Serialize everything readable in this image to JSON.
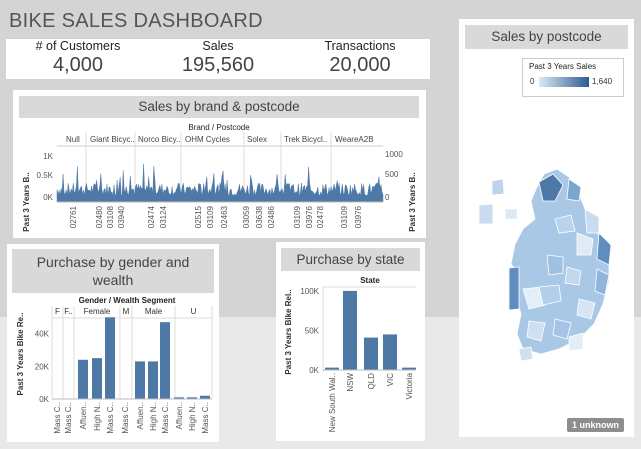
{
  "dashboard": {
    "title": "BIKE SALES DASHBOARD"
  },
  "kpis": [
    {
      "label": "# of Customers",
      "value": "4,000"
    },
    {
      "label": "Sales",
      "value": "195,560"
    },
    {
      "label": "Transactions",
      "value": "20,000"
    }
  ],
  "brand_panel": {
    "title": "Sales by brand & postcode",
    "column_header": "Brand / Postcode",
    "brands": [
      "Null",
      "Giant Bicyc..",
      "Norco Bicy..",
      "OHM Cycles",
      "Solex",
      "Trek Bicycl..",
      "WeareA2B"
    ],
    "left_axis_label": "Past 3 Years B..",
    "right_axis_label": "Past 3 Years B..",
    "left_ticks": [
      "1K",
      "0.5K",
      "0K"
    ],
    "right_ticks": [
      "1000",
      "500",
      "0"
    ],
    "postcodes": [
      "02761",
      "02480",
      "03108",
      "03940",
      "02474",
      "03124",
      "02515",
      "03109",
      "02463",
      "03059",
      "03638",
      "02486",
      "03109",
      "03976",
      "02478",
      "03109",
      "03976"
    ]
  },
  "map_panel": {
    "title": "Sales by postcode",
    "legend_title": "Past 3 Years Sales",
    "legend_min": "0",
    "legend_max": "1,640",
    "unknown_badge": "1 unknown"
  },
  "gender_panel": {
    "title": "Purchase by gender and wealth",
    "column_header": "Gender / Wealth Segment",
    "groups": [
      "F",
      "F..",
      "Female",
      "M",
      "Male",
      "U"
    ],
    "y_label": "Past 3 Years Bike Re..",
    "y_ticks": [
      "40K",
      "20K",
      "0K"
    ],
    "x_labels": [
      "Mass C..",
      "Mass C..",
      "Affuen..",
      "High N..",
      "Mass C..",
      "Mass C..",
      "Affuen..",
      "High N..",
      "Mass C..",
      "Affuen..",
      "High N..",
      "Mass C.."
    ]
  },
  "state_panel": {
    "title": "Purchase by state",
    "column_header": "State",
    "y_label": "Past 3 Years Bike Rel..",
    "y_ticks": [
      "100K",
      "50K",
      "0K"
    ]
  },
  "colors": {
    "bar": "#4e79a7",
    "header_bg": "#d9d9d9",
    "page_bg": "#d4d4d4"
  },
  "chart_data": [
    {
      "type": "bar",
      "title": "Purchase by state",
      "xlabel": "State",
      "ylabel": "Past 3 Years Bike Rel..",
      "categories": [
        "New South Wal..",
        "NSW",
        "QLD",
        "VIC",
        "Victoria"
      ],
      "values": [
        3000,
        100000,
        41000,
        45000,
        3000
      ],
      "ylim": [
        0,
        110000
      ]
    },
    {
      "type": "bar",
      "title": "Purchase by gender and wealth",
      "xlabel": "Gender / Wealth Segment",
      "ylabel": "Past 3 Years Bike Re..",
      "categories": [
        "F | Mass C..",
        "F.. | Mass C..",
        "Female | Affuen..",
        "Female | High N..",
        "Female | Mass C..",
        "M | Mass C..",
        "Male | Affuen..",
        "Male | High N..",
        "Male | Mass C..",
        "U | Affuen..",
        "U | High N..",
        "U | Mass C.."
      ],
      "values": [
        0,
        0,
        24000,
        25000,
        50000,
        0,
        23000,
        23000,
        47000,
        1000,
        1000,
        2000
      ],
      "ylim": [
        0,
        52000
      ]
    },
    {
      "type": "area",
      "title": "Sales by brand & postcode",
      "xlabel": "Brand / Postcode",
      "ylabel": "Past 3 Years B..",
      "ylim": [
        0,
        1300
      ]
    }
  ]
}
